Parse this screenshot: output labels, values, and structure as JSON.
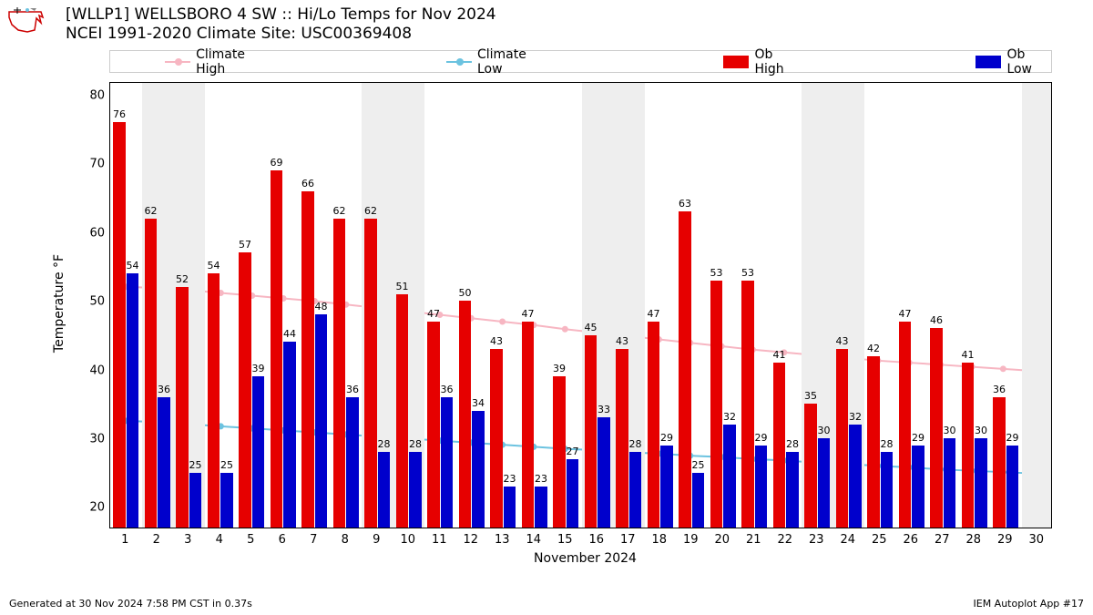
{
  "header": {
    "line1": "[WLLP1] WELLSBORO 4 SW :: Hi/Lo Temps for Nov 2024",
    "line2": "NCEI 1991-2020 Climate Site: USC00369408"
  },
  "legend": {
    "climate_high": "Climate High",
    "climate_low": "Climate Low",
    "ob_high": "Ob High",
    "ob_low": "Ob Low"
  },
  "colors": {
    "climate_high": "#f7b6c2",
    "climate_low": "#6cc3e0",
    "ob_high": "#e60000",
    "ob_low": "#0000cc",
    "weekend_band": "#eeeeee",
    "border": "#000000",
    "bg": "#ffffff"
  },
  "chart": {
    "type": "bar+line",
    "xlabel": "November 2024",
    "ylabel": "Temperature °F",
    "ylim": [
      17,
      82
    ],
    "yticks": [
      20,
      30,
      40,
      50,
      60,
      70,
      80
    ],
    "days": [
      1,
      2,
      3,
      4,
      5,
      6,
      7,
      8,
      9,
      10,
      11,
      12,
      13,
      14,
      15,
      16,
      17,
      18,
      19,
      20,
      21,
      22,
      23,
      24,
      25,
      26,
      27,
      28,
      29,
      30
    ],
    "weekend_days": [
      2,
      3,
      9,
      10,
      16,
      17,
      23,
      24,
      30
    ],
    "ob_high": [
      76,
      62,
      52,
      54,
      57,
      69,
      66,
      62,
      62,
      51,
      47,
      50,
      43,
      47,
      39,
      45,
      43,
      47,
      63,
      53,
      53,
      41,
      35,
      43,
      42,
      47,
      46,
      41,
      36,
      null
    ],
    "ob_low": [
      54,
      36,
      25,
      25,
      39,
      44,
      48,
      36,
      28,
      28,
      36,
      34,
      23,
      23,
      27,
      33,
      28,
      29,
      25,
      32,
      29,
      28,
      30,
      32,
      28,
      29,
      30,
      30,
      29,
      null
    ],
    "climate_high": [
      52.2,
      52.0,
      51.7,
      51.3,
      50.9,
      50.5,
      50.1,
      49.6,
      49.1,
      48.6,
      48.1,
      47.6,
      47.1,
      46.6,
      46.0,
      45.5,
      45.0,
      44.5,
      44.0,
      43.5,
      43.0,
      42.6,
      42.2,
      41.8,
      41.4,
      41.1,
      40.8,
      40.5,
      40.2,
      39.9
    ],
    "climate_low": [
      32.6,
      32.4,
      32.1,
      31.8,
      31.5,
      31.2,
      30.9,
      30.6,
      30.3,
      30.0,
      29.7,
      29.4,
      29.1,
      28.8,
      28.5,
      28.3,
      28.0,
      27.8,
      27.5,
      27.3,
      27.0,
      26.8,
      26.5,
      26.3,
      26.0,
      25.8,
      25.5,
      25.3,
      25.1,
      24.9
    ]
  },
  "footer": {
    "left": "Generated at 30 Nov 2024 7:58 PM CST in 0.37s",
    "right": "IEM Autoplot App #17"
  }
}
